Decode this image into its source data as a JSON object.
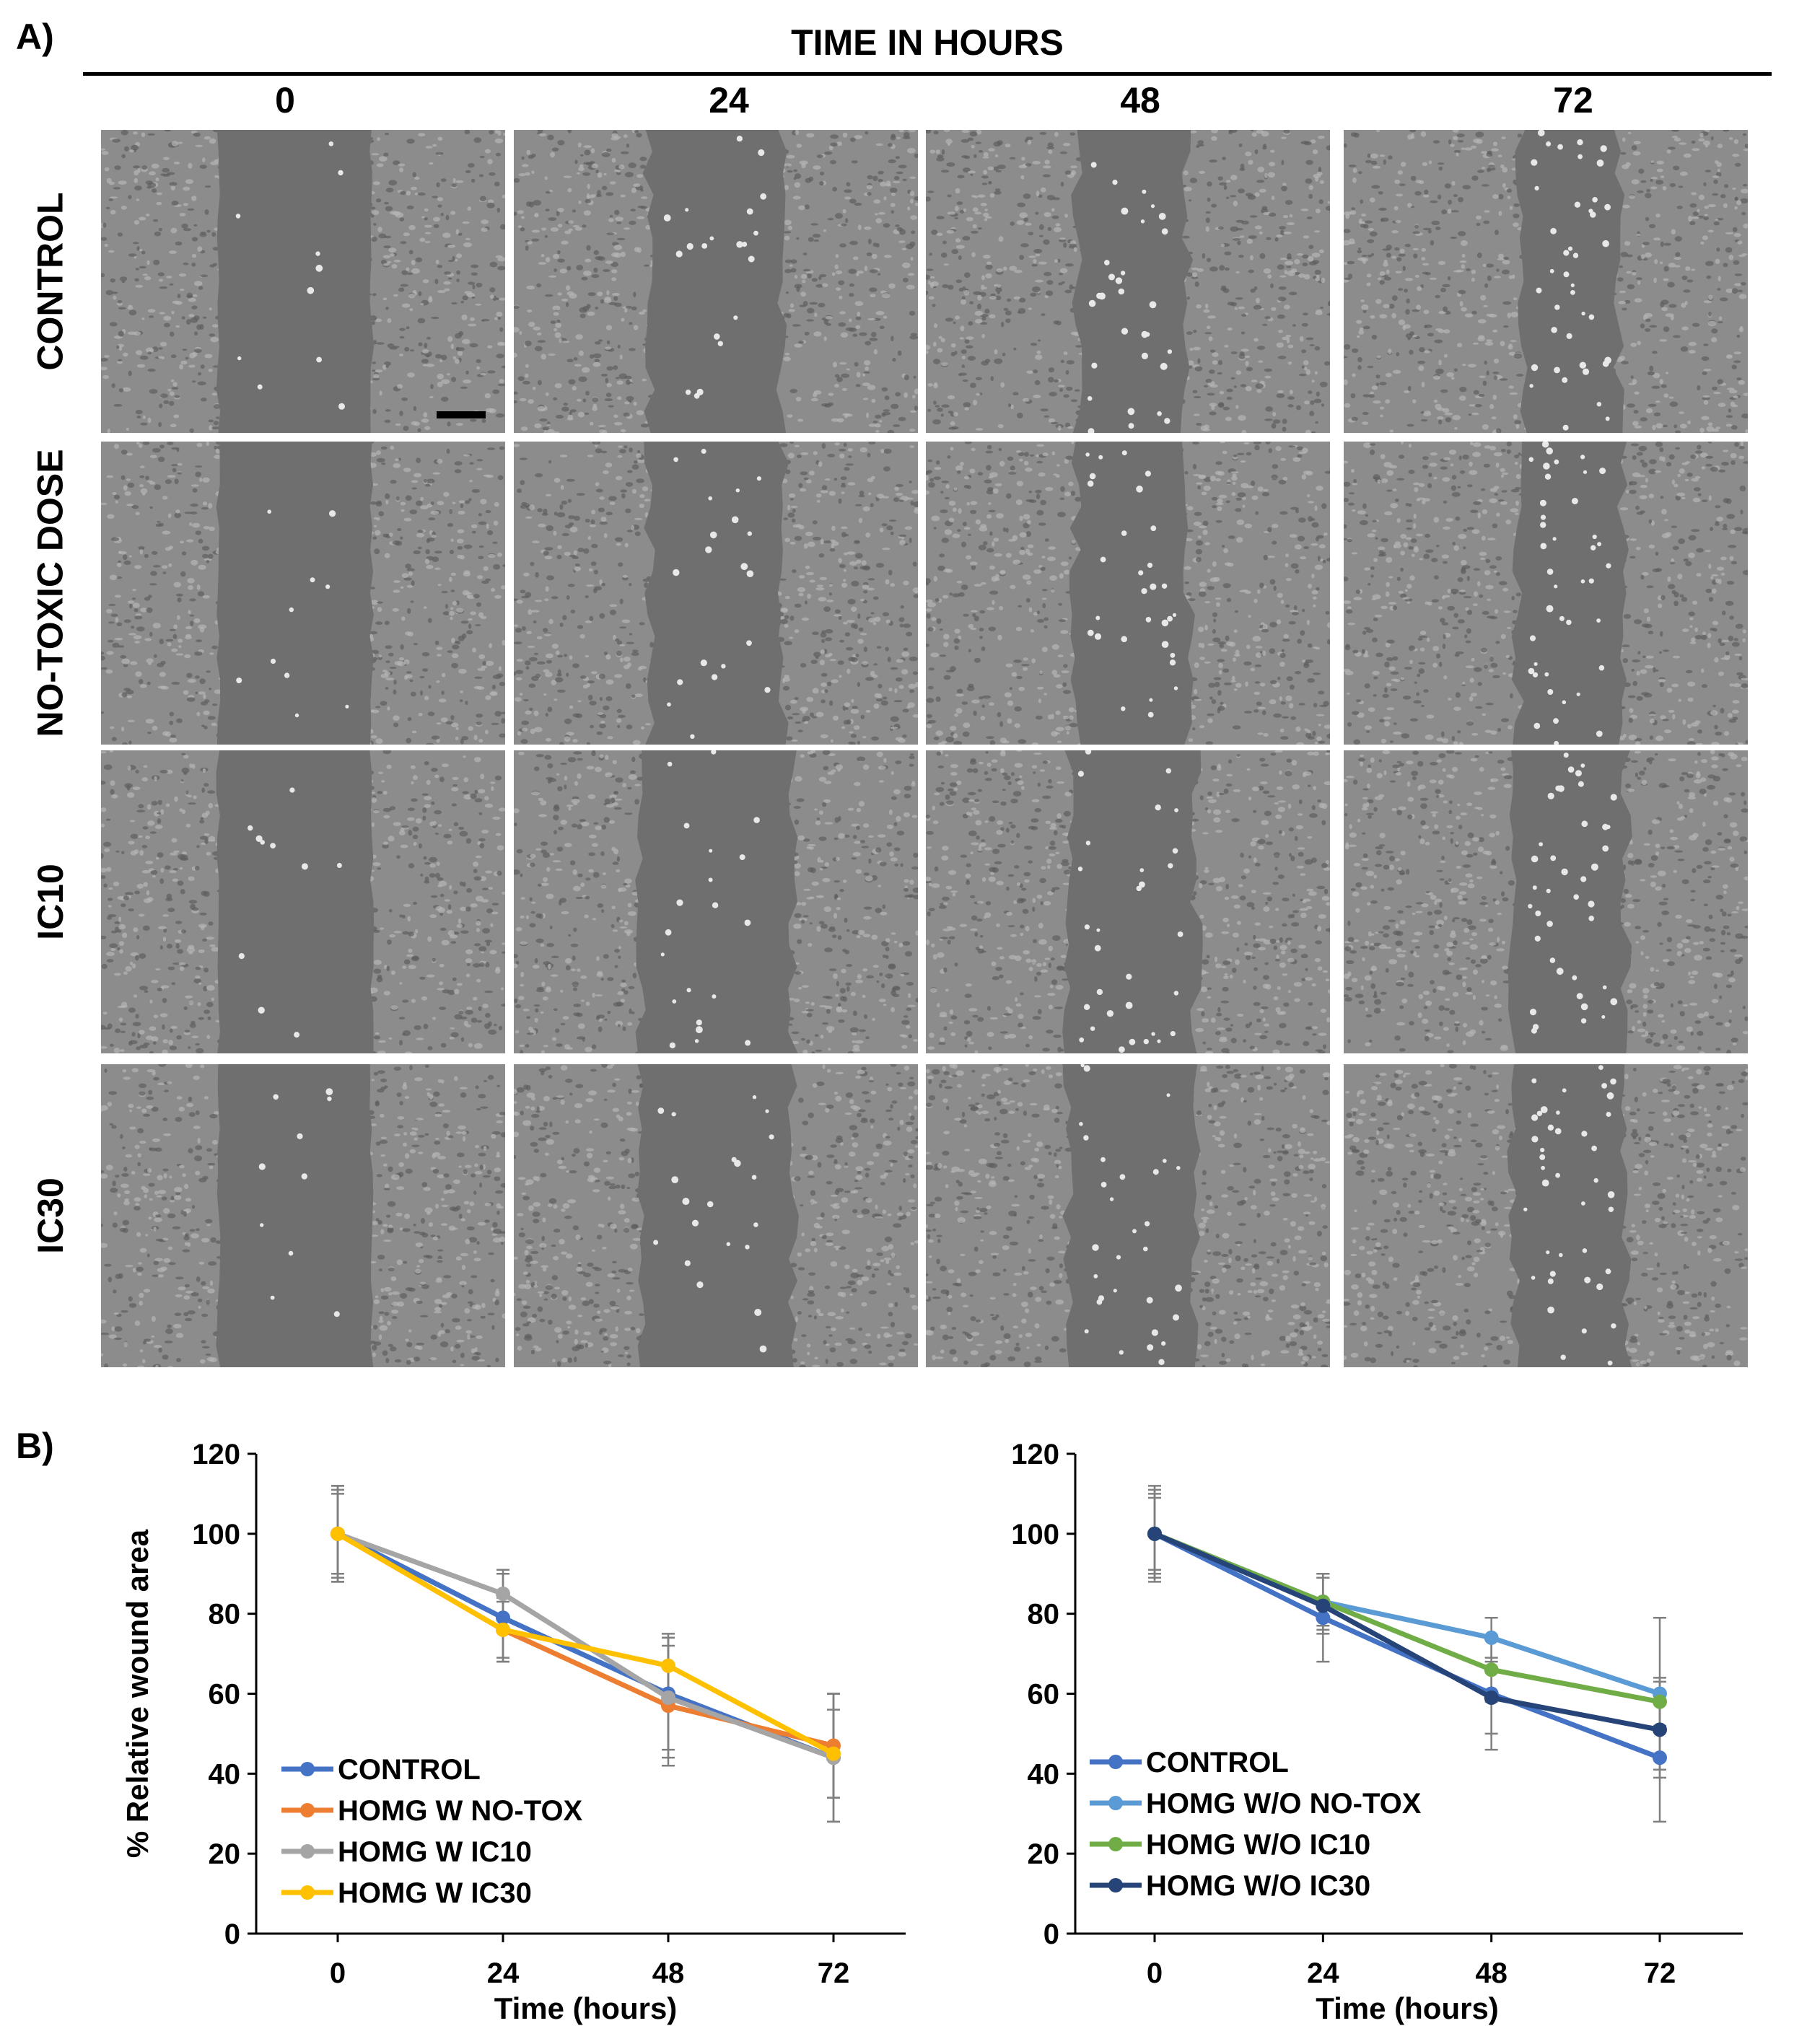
{
  "panel_a": {
    "label": "A)",
    "heading": "TIME IN HOURS",
    "columns": [
      "0",
      "24",
      "48",
      "72"
    ],
    "rows": [
      "CONTROL",
      "NO-TOXIC DOSE",
      "IC10",
      "IC30"
    ],
    "gap_fraction": {
      "CONTROL": [
        0.38,
        0.33,
        0.27,
        0.24
      ],
      "NO-TOXIC DOSE": [
        0.38,
        0.33,
        0.28,
        0.26
      ],
      "IC10": [
        0.38,
        0.38,
        0.32,
        0.28
      ],
      "IC30": [
        0.38,
        0.38,
        0.32,
        0.28
      ]
    }
  },
  "panel_b": {
    "label": "B)"
  },
  "chart_data": [
    {
      "type": "line",
      "title": "",
      "xlabel": "Time (hours)",
      "ylabel": "% Relative wound area",
      "x": [
        0,
        24,
        48,
        72
      ],
      "ylim": [
        0,
        120
      ],
      "yticks": [
        0,
        20,
        40,
        60,
        80,
        100,
        120
      ],
      "legend": "bottom-left",
      "series": [
        {
          "name": "CONTROL",
          "color": "#4472C4",
          "values": [
            100,
            79,
            60,
            44
          ],
          "err": [
            11,
            11,
            14,
            16
          ]
        },
        {
          "name": "HOMG W NO-TOX",
          "color": "#ED7D31",
          "values": [
            100,
            76,
            57,
            47
          ],
          "err": [
            12,
            8,
            15,
            13
          ]
        },
        {
          "name": "HOMG W IC10",
          "color": "#A5A5A5",
          "values": [
            100,
            85,
            59,
            44
          ],
          "err": [
            10,
            6,
            15,
            16
          ]
        },
        {
          "name": "HOMG W IC30",
          "color": "#FFC000",
          "values": [
            100,
            76,
            67,
            45
          ],
          "err": [
            12,
            7,
            8,
            11
          ]
        }
      ]
    },
    {
      "type": "line",
      "title": "",
      "xlabel": "Time (hours)",
      "ylabel": "",
      "x": [
        0,
        24,
        48,
        72
      ],
      "ylim": [
        0,
        120
      ],
      "yticks": [
        0,
        20,
        40,
        60,
        80,
        100,
        120
      ],
      "legend": "bottom-left",
      "series": [
        {
          "name": "CONTROL",
          "color": "#4472C4",
          "values": [
            100,
            79,
            60,
            44
          ],
          "err": [
            11,
            11,
            14,
            16
          ]
        },
        {
          "name": "HOMG W/O NO-TOX",
          "color": "#5B9BD5",
          "values": [
            100,
            83,
            74,
            60
          ],
          "err": [
            12,
            6,
            5,
            19
          ]
        },
        {
          "name": "HOMG W/O IC10",
          "color": "#70AD47",
          "values": [
            100,
            83,
            66,
            58
          ],
          "err": [
            9,
            7,
            8,
            6
          ]
        },
        {
          "name": "HOMG W/O IC30",
          "color": "#264478",
          "values": [
            100,
            82,
            59,
            51
          ],
          "err": [
            10,
            7,
            9,
            12
          ]
        }
      ]
    }
  ]
}
